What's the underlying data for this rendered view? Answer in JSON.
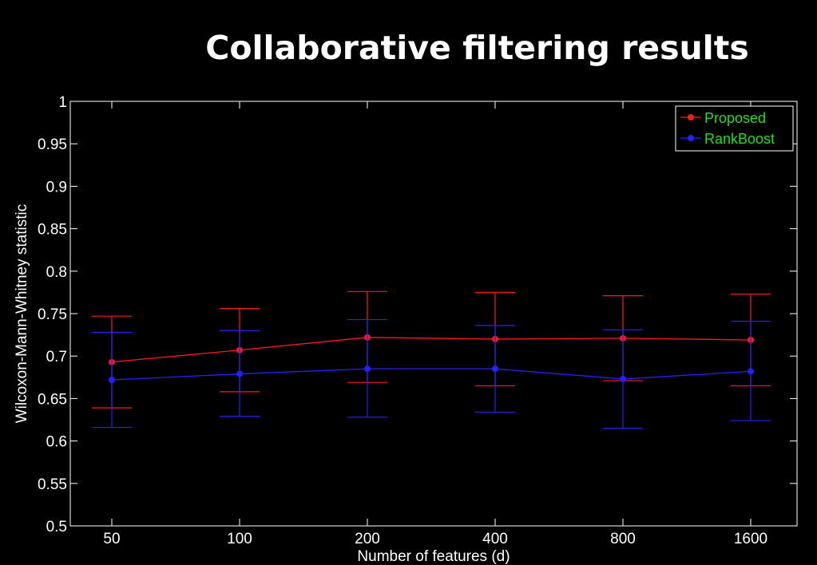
{
  "chart_data": {
    "type": "line",
    "title": "Collaborative filtering results",
    "xlabel": "Number of features (d)",
    "ylabel": "Wilcoxon-Mann-Whitney statistic",
    "categories": [
      "50",
      "100",
      "200",
      "400",
      "800",
      "1600"
    ],
    "ylim": [
      0.5,
      1
    ],
    "yticks": [
      "0.5",
      "0.55",
      "0.6",
      "0.65",
      "0.7",
      "0.75",
      "0.8",
      "0.85",
      "0.9",
      "0.95",
      "1"
    ],
    "grid": false,
    "legend_position": "top-right",
    "series": [
      {
        "name": "Proposed",
        "color": "#ff1a1a",
        "values": [
          0.693,
          0.707,
          0.722,
          0.72,
          0.721,
          0.719
        ],
        "lower": [
          0.639,
          0.658,
          0.669,
          0.665,
          0.671,
          0.665
        ],
        "upper": [
          0.747,
          0.756,
          0.776,
          0.775,
          0.771,
          0.773
        ]
      },
      {
        "name": "RankBoost",
        "color": "#2222ff",
        "values": [
          0.672,
          0.679,
          0.685,
          0.685,
          0.673,
          0.682
        ],
        "lower": [
          0.616,
          0.629,
          0.628,
          0.634,
          0.615,
          0.624
        ],
        "upper": [
          0.728,
          0.73,
          0.743,
          0.736,
          0.731,
          0.741
        ]
      }
    ]
  }
}
